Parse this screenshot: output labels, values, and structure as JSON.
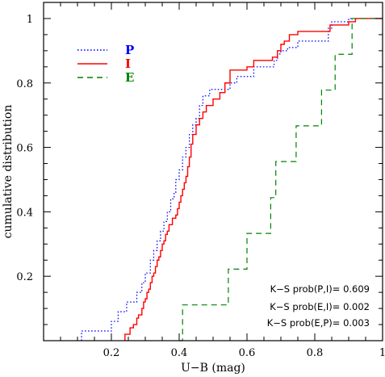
{
  "chart_data": {
    "type": "line",
    "xlabel": "U−B (mag)",
    "ylabel": "cumulative distribution",
    "xlim": [
      0.0,
      1.0
    ],
    "ylim": [
      0.0,
      1.05
    ],
    "xticks": [
      0.2,
      0.4,
      0.6,
      0.8,
      1
    ],
    "xtick_labels": [
      "0.2",
      "0.4",
      "0.6",
      "0.8",
      "1"
    ],
    "yticks": [
      0.2,
      0.4,
      0.6,
      0.8,
      1
    ],
    "ytick_labels": [
      "0.2",
      "0.4",
      "0.6",
      "0.8",
      "1"
    ],
    "legend_position": "top-left",
    "series": [
      {
        "name": "P",
        "color": "#0000ff",
        "dash": "dotted",
        "x": [
          0.112,
          0.2,
          0.22,
          0.245,
          0.275,
          0.29,
          0.3,
          0.315,
          0.325,
          0.335,
          0.345,
          0.355,
          0.365,
          0.375,
          0.385,
          0.39,
          0.4,
          0.41,
          0.42,
          0.43,
          0.44,
          0.45,
          0.46,
          0.47,
          0.48,
          0.49,
          0.5,
          0.52,
          0.55,
          0.57,
          0.62,
          0.65,
          0.68,
          0.69,
          0.7,
          0.72,
          0.75,
          0.78,
          0.84,
          0.85,
          0.9,
          0.93,
          1.0
        ],
        "y": [
          0.03,
          0.06,
          0.09,
          0.12,
          0.15,
          0.18,
          0.21,
          0.25,
          0.28,
          0.31,
          0.34,
          0.37,
          0.4,
          0.44,
          0.46,
          0.5,
          0.53,
          0.57,
          0.6,
          0.64,
          0.67,
          0.69,
          0.73,
          0.76,
          0.76,
          0.78,
          0.78,
          0.78,
          0.8,
          0.82,
          0.85,
          0.85,
          0.87,
          0.89,
          0.9,
          0.91,
          0.93,
          0.93,
          0.97,
          0.99,
          1.0,
          1.0,
          1.0
        ]
      },
      {
        "name": "I",
        "color": "#ff0000",
        "dash": "solid",
        "x": [
          0.24,
          0.255,
          0.265,
          0.275,
          0.28,
          0.29,
          0.295,
          0.3,
          0.305,
          0.31,
          0.315,
          0.32,
          0.325,
          0.33,
          0.335,
          0.34,
          0.345,
          0.35,
          0.355,
          0.36,
          0.365,
          0.37,
          0.38,
          0.39,
          0.395,
          0.4,
          0.405,
          0.41,
          0.415,
          0.42,
          0.425,
          0.43,
          0.435,
          0.44,
          0.45,
          0.46,
          0.47,
          0.48,
          0.5,
          0.52,
          0.535,
          0.55,
          0.6,
          0.62,
          0.66,
          0.675,
          0.69,
          0.7,
          0.71,
          0.725,
          0.74,
          0.75,
          0.8,
          0.845,
          0.86,
          0.9,
          0.92,
          1.0
        ],
        "y": [
          0.02,
          0.04,
          0.05,
          0.07,
          0.08,
          0.1,
          0.12,
          0.13,
          0.15,
          0.16,
          0.18,
          0.2,
          0.21,
          0.23,
          0.25,
          0.26,
          0.28,
          0.3,
          0.31,
          0.33,
          0.34,
          0.36,
          0.38,
          0.39,
          0.41,
          0.43,
          0.45,
          0.47,
          0.49,
          0.51,
          0.54,
          0.57,
          0.61,
          0.64,
          0.67,
          0.69,
          0.71,
          0.73,
          0.75,
          0.77,
          0.8,
          0.84,
          0.85,
          0.87,
          0.87,
          0.88,
          0.9,
          0.92,
          0.93,
          0.95,
          0.95,
          0.96,
          0.96,
          0.98,
          0.98,
          0.99,
          1.0,
          1.0
        ]
      },
      {
        "name": "E",
        "color": "#008000",
        "dash": "dashed",
        "x": [
          0.4,
          0.41,
          0.51,
          0.545,
          0.6,
          0.67,
          0.685,
          0.72,
          0.745,
          0.79,
          0.82,
          0.835,
          0.86,
          0.875,
          0.91,
          1.0
        ],
        "y": [
          0.0,
          0.111,
          0.111,
          0.222,
          0.333,
          0.444,
          0.556,
          0.556,
          0.667,
          0.667,
          0.778,
          0.778,
          0.889,
          0.889,
          1.0,
          1.0
        ]
      }
    ],
    "annotations": [
      "K−S  prob(P,I)=  0.609",
      "K−S  prob(E,I)=  0.002",
      "K−S  prob(E,P)=  0.003"
    ]
  }
}
